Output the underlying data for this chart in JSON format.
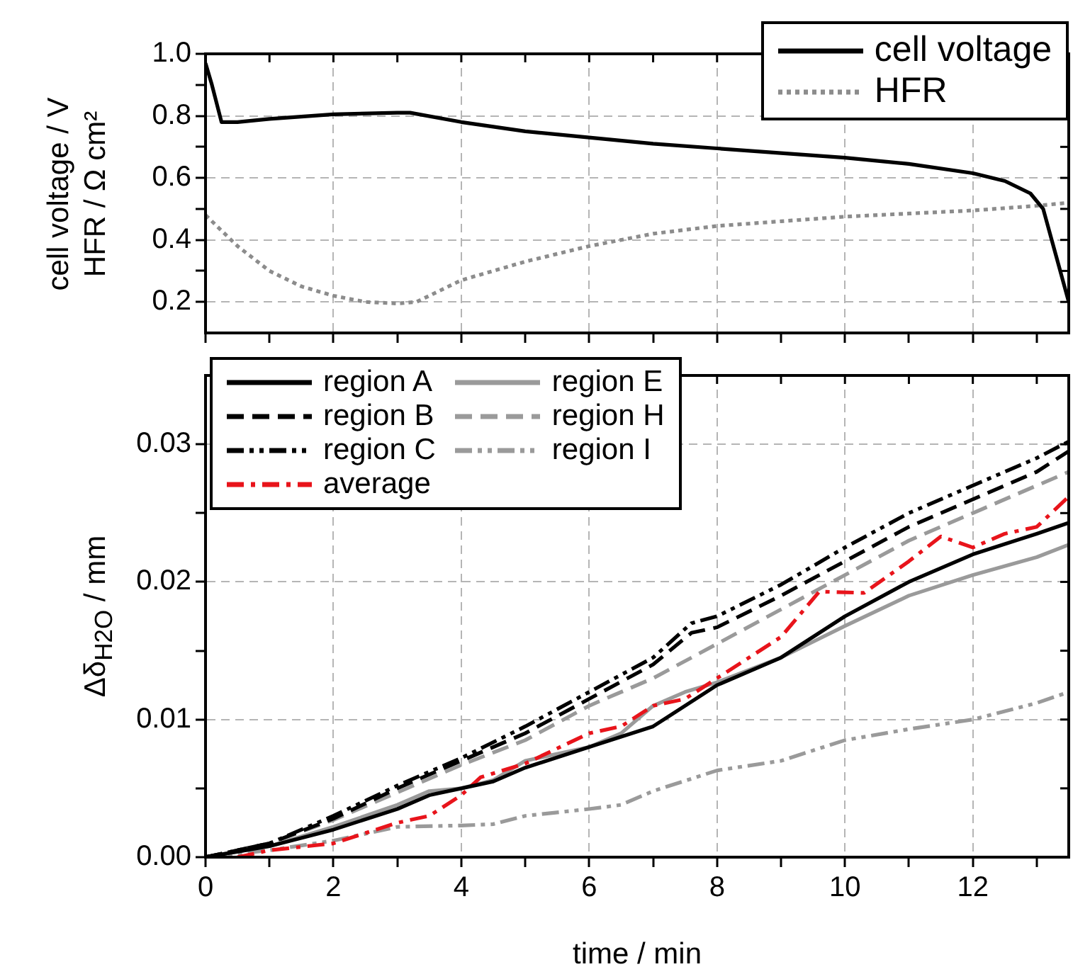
{
  "chart_data": [
    {
      "type": "line",
      "ylabel": "cell voltage / V\nHFR / Ω cm²",
      "xlim": [
        0,
        13.5
      ],
      "xticks": [
        0,
        {
          "value": 1,
          "label": null
        },
        2,
        {
          "value": 3,
          "label": null
        },
        4,
        {
          "value": 5,
          "label": null
        },
        6,
        {
          "value": 7,
          "label": null
        },
        8,
        {
          "value": 9,
          "label": null
        },
        10,
        {
          "value": 11,
          "label": null
        },
        12,
        {
          "value": 13,
          "label": null
        }
      ],
      "ylim": [
        0.1,
        1.0
      ],
      "yticks": [
        {
          "value": 0.2,
          "label": "0.2"
        },
        {
          "value": 0.3,
          "label": null
        },
        {
          "value": 0.4,
          "label": "0.4"
        },
        {
          "value": 0.5,
          "label": null
        },
        {
          "value": 0.6,
          "label": "0.6"
        },
        {
          "value": 0.7,
          "label": null
        },
        {
          "value": 0.8,
          "label": "0.8"
        },
        {
          "value": 0.9,
          "label": null
        },
        {
          "value": 1.0,
          "label": "1.0"
        }
      ],
      "grid": true,
      "legend": "top right",
      "tick_labels": "y",
      "series": [
        {
          "name": "cell voltage",
          "color": "#000000",
          "line_style": "solid",
          "x": [
            0,
            0.1,
            0.25,
            0.5,
            1,
            2,
            3,
            3.2,
            4,
            5,
            6,
            7,
            8,
            9,
            10,
            11,
            12,
            12.5,
            12.9,
            13.1,
            13.3,
            13.5
          ],
          "values": [
            0.97,
            0.9,
            0.78,
            0.78,
            0.79,
            0.805,
            0.81,
            0.81,
            0.78,
            0.75,
            0.73,
            0.71,
            0.695,
            0.68,
            0.665,
            0.645,
            0.615,
            0.59,
            0.55,
            0.5,
            0.35,
            0.2
          ]
        },
        {
          "name": "HFR",
          "color": "#8c8c8c",
          "line_style": "dotted",
          "x": [
            0,
            0.5,
            1,
            1.5,
            2,
            2.5,
            3,
            3.3,
            4,
            5,
            6,
            7,
            8,
            9,
            10,
            11,
            12,
            13,
            13.5
          ],
          "values": [
            0.48,
            0.38,
            0.3,
            0.25,
            0.22,
            0.2,
            0.195,
            0.2,
            0.27,
            0.33,
            0.38,
            0.42,
            0.445,
            0.46,
            0.475,
            0.485,
            0.495,
            0.51,
            0.52
          ]
        }
      ]
    },
    {
      "type": "line",
      "xlabel": "time / min",
      "ylabel": "Δδ$_{H2O}$ / mm",
      "xlim": [
        0,
        13.5
      ],
      "xticks": [
        0,
        {
          "value": 1,
          "label": null
        },
        2,
        {
          "value": 3,
          "label": null
        },
        4,
        {
          "value": 5,
          "label": null
        },
        6,
        {
          "value": 7,
          "label": null
        },
        8,
        {
          "value": 9,
          "label": null
        },
        10,
        {
          "value": 11,
          "label": null
        },
        12,
        {
          "value": 13,
          "label": null
        }
      ],
      "ylim": [
        0,
        0.035
      ],
      "yticks": [
        {
          "value": 0,
          "label": "0.00"
        },
        {
          "value": 0.005,
          "label": null
        },
        {
          "value": 0.01,
          "label": "0.01"
        },
        {
          "value": 0.015,
          "label": null
        },
        {
          "value": 0.02,
          "label": "0.02"
        },
        {
          "value": 0.025,
          "label": null
        },
        {
          "value": 0.03,
          "label": "0.03"
        }
      ],
      "grid": true,
      "legend": "top left",
      "series": [
        {
          "name": "region A",
          "color": "#000000",
          "line_style": "solid",
          "x": [
            0,
            1,
            2,
            3,
            3.5,
            4,
            4.5,
            5,
            6,
            7,
            8,
            9,
            10,
            11,
            12,
            13,
            13.5
          ],
          "values": [
            0,
            0.0008,
            0.002,
            0.0035,
            0.0045,
            0.005,
            0.0055,
            0.0065,
            0.008,
            0.0095,
            0.0125,
            0.0145,
            0.0175,
            0.02,
            0.022,
            0.0235,
            0.0243
          ]
        },
        {
          "name": "region B",
          "color": "#000000",
          "line_style": "dashed",
          "x": [
            0,
            1,
            2,
            3,
            4,
            5,
            6,
            7,
            7.6,
            8,
            9,
            10,
            11,
            12,
            13,
            13.5
          ],
          "values": [
            0,
            0.001,
            0.0028,
            0.005,
            0.007,
            0.009,
            0.0115,
            0.014,
            0.0163,
            0.0167,
            0.019,
            0.0215,
            0.024,
            0.026,
            0.028,
            0.0295
          ]
        },
        {
          "name": "region C",
          "color": "#000000",
          "line_style": "dashdotdot",
          "x": [
            0,
            1,
            2,
            3,
            4,
            5,
            6,
            7,
            7.6,
            8,
            9,
            10,
            11,
            12,
            13,
            13.5
          ],
          "values": [
            0,
            0.001,
            0.003,
            0.0052,
            0.0072,
            0.0095,
            0.012,
            0.0145,
            0.017,
            0.0175,
            0.0198,
            0.0225,
            0.025,
            0.027,
            0.029,
            0.0302
          ]
        },
        {
          "name": "average",
          "color": "#e8141b",
          "line_style": "dashdot",
          "x": [
            0.5,
            1,
            2,
            3,
            3.5,
            4,
            4.3,
            5,
            6,
            6.5,
            7,
            7.5,
            8,
            9,
            9.6,
            10.3,
            11,
            11.5,
            12,
            12.5,
            13,
            13.5
          ],
          "values": [
            0,
            0.0005,
            0.001,
            0.0025,
            0.003,
            0.0045,
            0.0058,
            0.0068,
            0.009,
            0.0095,
            0.011,
            0.0115,
            0.013,
            0.016,
            0.0193,
            0.0192,
            0.0215,
            0.0233,
            0.0225,
            0.0235,
            0.024,
            0.0262
          ]
        },
        {
          "name": "region E",
          "color": "#9a9a9a",
          "line_style": "solid",
          "x": [
            0,
            1,
            2,
            3,
            3.5,
            4,
            4.5,
            5,
            6,
            6.5,
            7,
            7.5,
            8,
            9,
            10,
            11,
            12,
            13,
            13.5
          ],
          "values": [
            0,
            0.0008,
            0.0022,
            0.0038,
            0.0048,
            0.005,
            0.0056,
            0.007,
            0.008,
            0.009,
            0.011,
            0.012,
            0.0127,
            0.0145,
            0.0168,
            0.019,
            0.0205,
            0.0218,
            0.0227
          ]
        },
        {
          "name": "region H",
          "color": "#9a9a9a",
          "line_style": "dashed",
          "x": [
            0,
            1,
            2,
            3,
            4,
            5,
            6,
            7,
            8,
            9,
            10,
            11,
            12,
            13,
            13.5
          ],
          "values": [
            0,
            0.001,
            0.0027,
            0.0047,
            0.0067,
            0.0085,
            0.011,
            0.013,
            0.0155,
            0.018,
            0.0205,
            0.023,
            0.025,
            0.027,
            0.028
          ]
        },
        {
          "name": "region I",
          "color": "#9a9a9a",
          "line_style": "dashdotdot",
          "x": [
            0,
            1,
            2,
            3,
            4,
            4.5,
            5,
            6,
            6.5,
            7,
            8,
            9,
            10,
            11,
            12,
            13,
            13.5
          ],
          "values": [
            0,
            0.0005,
            0.0012,
            0.0022,
            0.0023,
            0.0024,
            0.003,
            0.0035,
            0.0038,
            0.0048,
            0.0063,
            0.007,
            0.0085,
            0.0093,
            0.01,
            0.0112,
            0.012
          ]
        }
      ]
    }
  ]
}
